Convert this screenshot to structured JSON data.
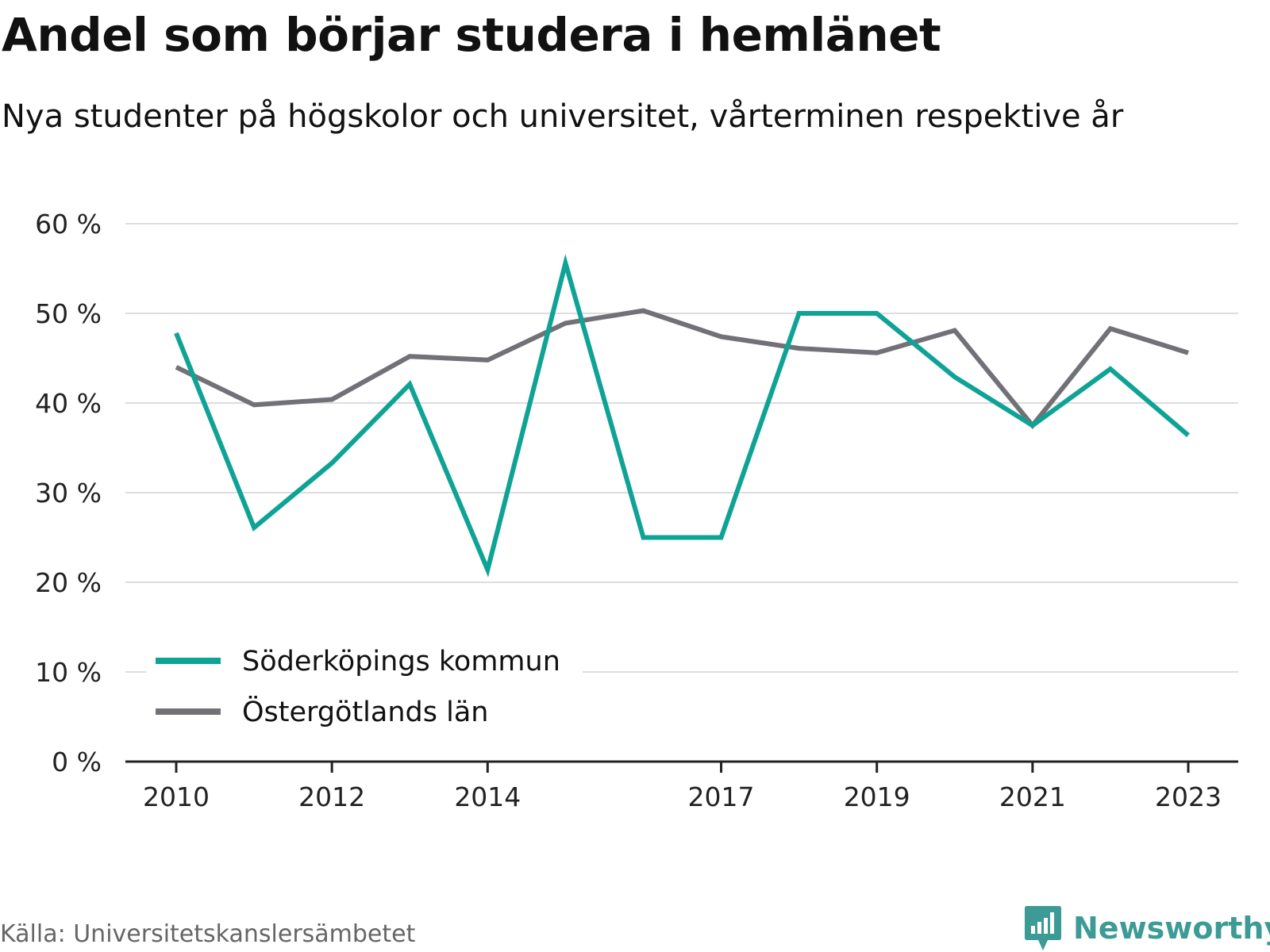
{
  "header": {
    "title": "Andel som börjar studera i hemlänet",
    "subtitle": "Nya studenter på högskolor och universitet, vårterminen respektive år"
  },
  "footer": {
    "source": "Källa: Universitetskanslersämbetet",
    "brand": "Newsworthy"
  },
  "colors": {
    "series_1": "#0fa396",
    "series_2": "#727178",
    "grid": "#dddddd",
    "axis": "#222222",
    "brand": "#3d9b95"
  },
  "chart_data": {
    "type": "line",
    "x": [
      2010,
      2011,
      2012,
      2013,
      2014,
      2015,
      2016,
      2017,
      2018,
      2019,
      2020,
      2021,
      2022,
      2023
    ],
    "x_tick_labels": [
      "2010",
      "2012",
      "2014",
      "2017",
      "2019",
      "2021",
      "2023"
    ],
    "x_tick_values": [
      2010,
      2012,
      2014,
      2017,
      2019,
      2021,
      2023
    ],
    "y_tick_values": [
      0,
      10,
      20,
      30,
      40,
      50,
      60
    ],
    "y_tick_labels": [
      "0 %",
      "10 %",
      "20 %",
      "30 %",
      "40 %",
      "50 %",
      "60 %"
    ],
    "ylim": [
      0,
      60
    ],
    "grid": true,
    "legend_position": "bottom-left",
    "series": [
      {
        "name": "Söderköpings kommun",
        "color": "#0fa396",
        "values": [
          47.8,
          26.1,
          33.3,
          42.1,
          21.4,
          55.6,
          25.0,
          25.0,
          50.0,
          50.0,
          42.9,
          37.5,
          43.8,
          36.4
        ]
      },
      {
        "name": "Östergötlands län",
        "color": "#727178",
        "values": [
          44.0,
          39.8,
          40.4,
          45.2,
          44.8,
          48.9,
          50.3,
          47.4,
          46.1,
          45.6,
          48.1,
          37.5,
          48.3,
          45.6
        ]
      }
    ]
  }
}
